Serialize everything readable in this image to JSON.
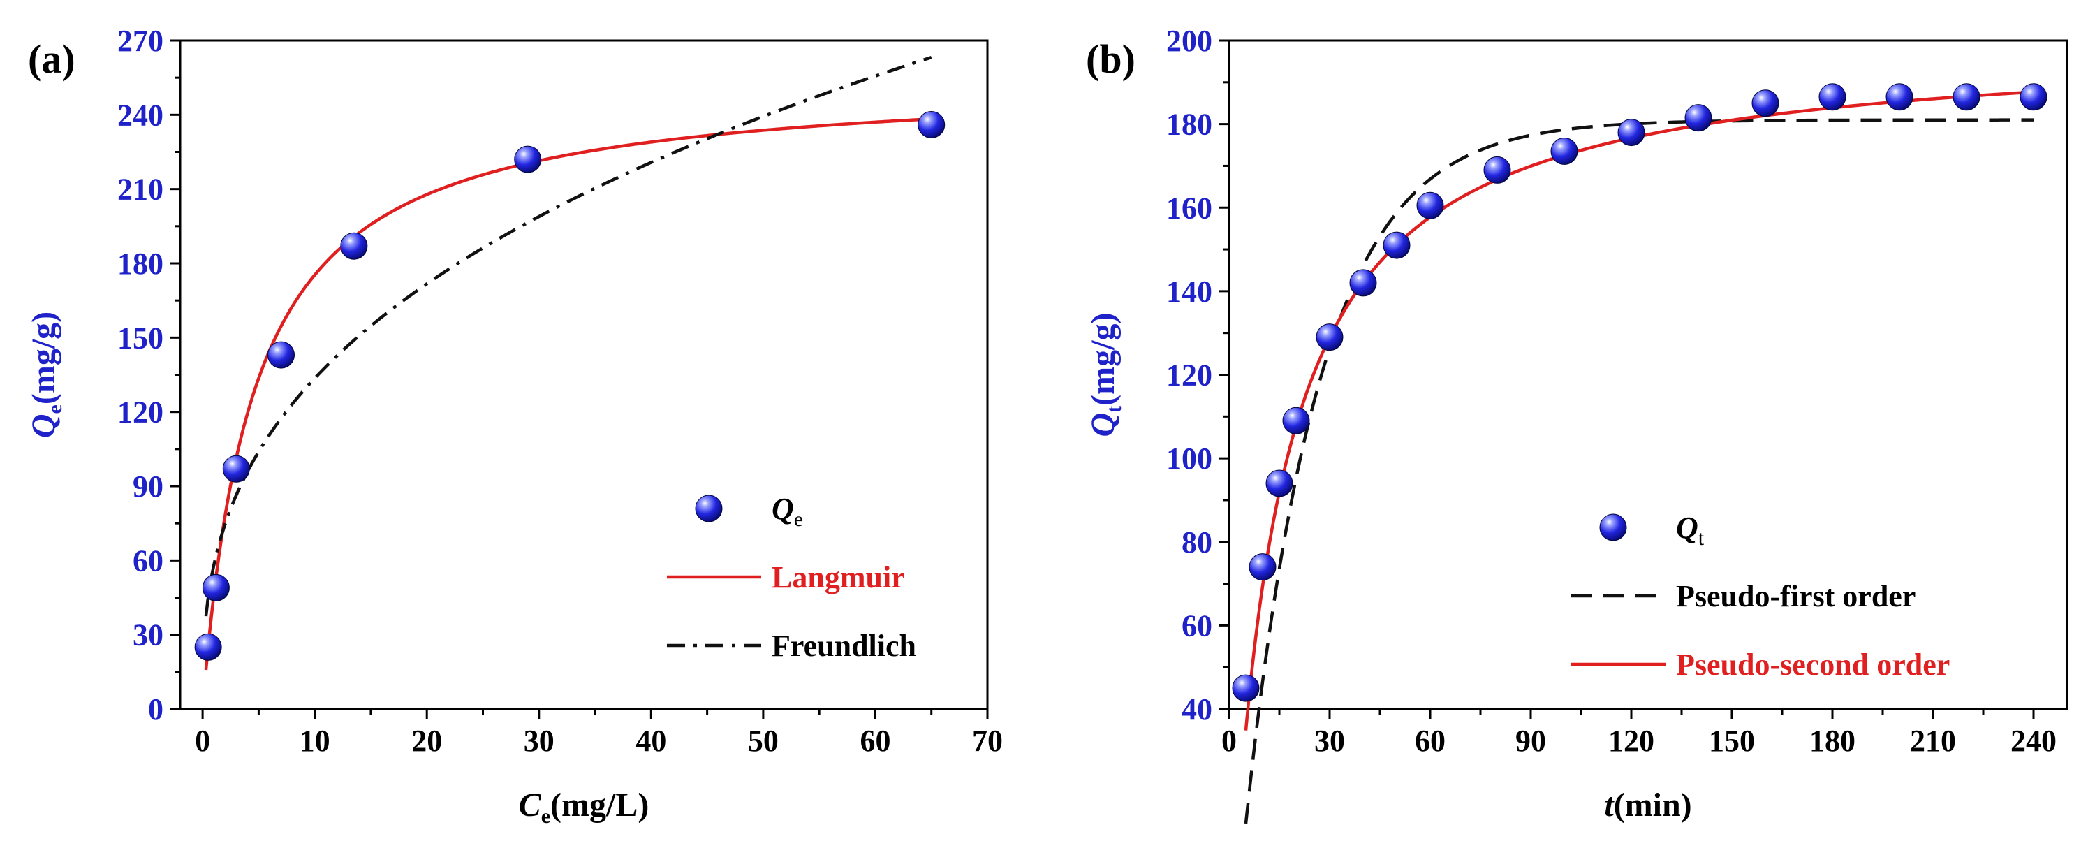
{
  "chart_data": [
    {
      "panel_label": "(a)",
      "type": "scatter",
      "xlabel_main": "C",
      "xlabel_sub": "e",
      "xlabel_unit": "(mg/L)",
      "ylabel_main": "Q",
      "ylabel_sub": "e",
      "ylabel_unit": "(mg/g)",
      "xlim": [
        -2,
        70
      ],
      "ylim": [
        0,
        270
      ],
      "xticks": [
        0,
        10,
        20,
        30,
        40,
        50,
        60,
        70
      ],
      "yticks": [
        0,
        30,
        60,
        90,
        120,
        150,
        180,
        210,
        240,
        270
      ],
      "points": {
        "name": "Q",
        "name_sub": "e",
        "x": [
          0.5,
          1.2,
          3.0,
          7.0,
          13.5,
          29.0,
          65.0
        ],
        "y": [
          25,
          49,
          97,
          143,
          187,
          222,
          236
        ]
      },
      "fits": [
        {
          "name": "Langmuir",
          "model": "langmuir",
          "qm": 255,
          "k": 0.22,
          "xmin": 0.3,
          "xmax": 65,
          "color": "#e02020",
          "dash": "solid"
        },
        {
          "name": "Freundlich",
          "model": "freundlich",
          "kf": 58,
          "n": 2.76,
          "xmin": 0.3,
          "xmax": 65,
          "color": "#111111",
          "dash": "dashdot"
        }
      ],
      "legend_colors": {
        "points": "#1e22c8",
        "Langmuir": "#e02020",
        "Freundlich": "#111111"
      }
    },
    {
      "panel_label": "(b)",
      "type": "scatter",
      "xlabel_main": "t",
      "xlabel_sub": "",
      "xlabel_unit": "(min)",
      "ylabel_main": "Q",
      "ylabel_sub": "t",
      "ylabel_unit": "(mg/g)",
      "xlim": [
        0,
        250
      ],
      "ylim": [
        40,
        200
      ],
      "xticks": [
        0,
        30,
        60,
        90,
        120,
        150,
        180,
        210,
        240
      ],
      "yticks": [
        40,
        60,
        80,
        100,
        120,
        140,
        160,
        180,
        200
      ],
      "points": {
        "name": "Q",
        "name_sub": "t",
        "x": [
          5,
          10,
          15,
          20,
          30,
          40,
          50,
          60,
          80,
          100,
          120,
          140,
          160,
          180,
          200,
          220,
          240
        ],
        "y": [
          45,
          74,
          94,
          109,
          129,
          142,
          151,
          160.5,
          169,
          173.5,
          178,
          181.5,
          185,
          186.5,
          186.5,
          186.5,
          186.5
        ]
      },
      "fits": [
        {
          "name": "Pseudo-first order",
          "model": "pfo",
          "qe": 181,
          "k": 0.045,
          "t0": 3.4,
          "xmin": 5,
          "xmax": 240,
          "color": "#111111",
          "dash": "dashed"
        },
        {
          "name": "Pseudo-second order",
          "model": "pso",
          "qe": 200,
          "k": 0.00032,
          "t0": 1.7,
          "xmin": 5,
          "xmax": 240,
          "color": "#e02020",
          "dash": "solid"
        }
      ],
      "legend_colors": {
        "points": "#1e22c8",
        "Pseudo-first order": "#111111",
        "Pseudo-second order": "#e02020"
      }
    }
  ]
}
